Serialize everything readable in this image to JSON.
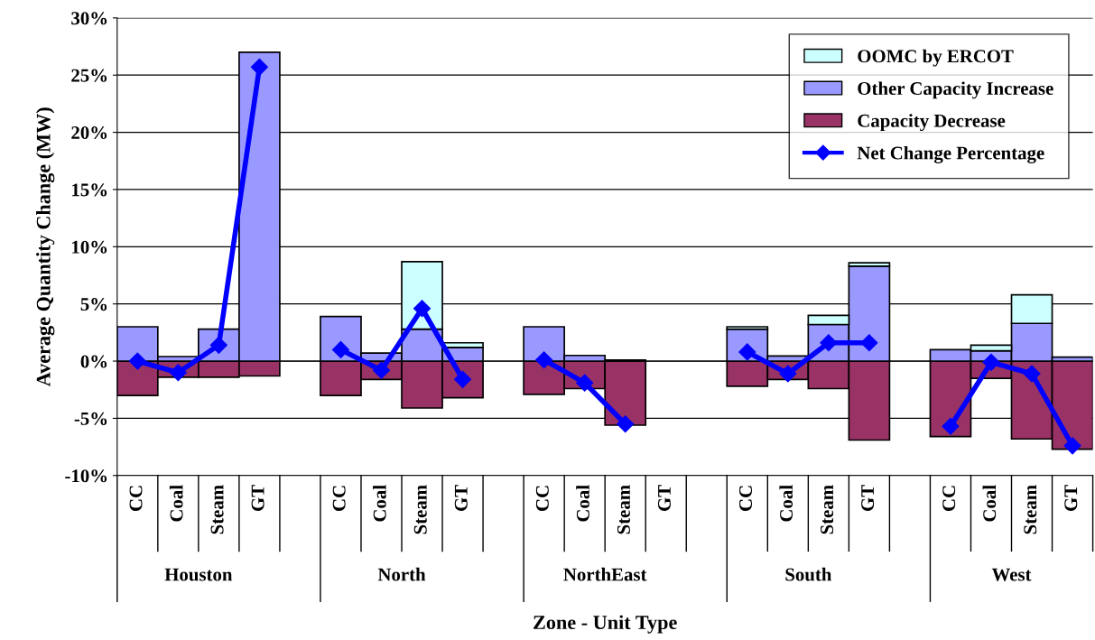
{
  "chart_data": {
    "type": "bar",
    "stacked": true,
    "xlabel": "Zone - Unit Type",
    "ylabel": "Average Quantity Change (MW)",
    "categories": [
      "CC",
      "Coal",
      "Steam",
      "GT",
      null,
      "CC",
      "Coal",
      "Steam",
      "GT",
      null,
      "CC",
      "Coal",
      "Steam",
      "GT",
      null,
      "CC",
      "Coal",
      "Steam",
      "GT",
      null,
      "CC",
      "Coal",
      "Steam",
      "GT"
    ],
    "annotations": [
      "Houston",
      "North",
      "NorthEast",
      "South",
      "West"
    ],
    "series": [
      {
        "name": "Capacity Decrease",
        "color": "#993366",
        "values": [
          -3.0,
          -1.4,
          -1.4,
          -1.3,
          null,
          -3.0,
          -1.6,
          -4.1,
          -3.2,
          null,
          -2.9,
          -2.4,
          -5.6,
          null,
          null,
          -2.2,
          -1.6,
          -2.4,
          -6.9,
          null,
          -6.6,
          -1.5,
          -6.8,
          -7.7
        ]
      },
      {
        "name": "Other Capacity Increase",
        "color": "#9999ff",
        "values": [
          3.0,
          0.4,
          2.8,
          27.0,
          null,
          3.9,
          0.7,
          2.8,
          1.2,
          null,
          3.0,
          0.5,
          0.1,
          null,
          null,
          2.8,
          0.45,
          3.2,
          8.3,
          null,
          1.0,
          0.9,
          3.3,
          0.35
        ]
      },
      {
        "name": "OOMC by ERCOT",
        "color": "#ccffff",
        "values": [
          null,
          null,
          null,
          null,
          null,
          null,
          null,
          5.9,
          0.4,
          null,
          null,
          null,
          null,
          null,
          null,
          0.2,
          null,
          0.8,
          0.3,
          null,
          null,
          0.5,
          2.5,
          null
        ]
      },
      {
        "name": "Net Change Percentage",
        "type": "line",
        "color": "#0000ff",
        "marker": "diamond",
        "values": [
          0.0,
          -1.0,
          1.4,
          25.7,
          null,
          1.0,
          -0.8,
          4.6,
          -1.6,
          null,
          0.1,
          -1.9,
          -5.5,
          null,
          null,
          0.8,
          -1.1,
          1.6,
          1.6,
          null,
          -5.7,
          -0.1,
          -1.1,
          -7.4
        ]
      }
    ],
    "ylim": [
      -10,
      30
    ],
    "yticks": [
      {
        "value": -10,
        "label": "-10%"
      },
      {
        "value": -5,
        "label": "-5%"
      },
      {
        "value": 0,
        "label": "0%"
      },
      {
        "value": 5,
        "label": "5%"
      },
      {
        "value": 10,
        "label": "10%"
      },
      {
        "value": 15,
        "label": "15%"
      },
      {
        "value": 20,
        "label": "20%"
      },
      {
        "value": 25,
        "label": "25%"
      },
      {
        "value": 30,
        "label": "30%"
      }
    ],
    "grid": "y",
    "legend": "top right"
  }
}
